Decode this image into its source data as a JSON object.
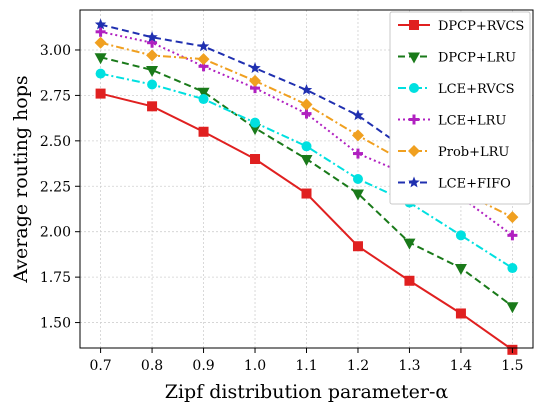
{
  "chart_data": {
    "type": "line",
    "title": "",
    "xlabel": "Zipf distribution parameter-α",
    "ylabel": "Average routing hops",
    "x": [
      0.7,
      0.8,
      0.9,
      1.0,
      1.1,
      1.2,
      1.3,
      1.4,
      1.5
    ],
    "x_tick_labels": [
      "0.7",
      "0.8",
      "0.9",
      "1.0",
      "1.1",
      "1.2",
      "1.3",
      "1.4",
      "1.5"
    ],
    "xlim": [
      0.66,
      1.54
    ],
    "ylim": [
      1.36,
      3.22
    ],
    "y_ticks": [
      1.5,
      1.75,
      2.0,
      2.25,
      2.5,
      2.75,
      3.0
    ],
    "y_tick_labels": [
      "1.50",
      "1.75",
      "2.00",
      "2.25",
      "2.50",
      "2.75",
      "3.00"
    ],
    "grid": true,
    "legend_position": "top-right",
    "series": [
      {
        "name": "DPCP+RVCS",
        "color": "#e02020",
        "marker": "square",
        "dash": "solid",
        "values": [
          2.76,
          2.69,
          2.55,
          2.4,
          2.21,
          1.92,
          1.73,
          1.55,
          1.35
        ]
      },
      {
        "name": "DPCP+LRU",
        "color": "#1a7a1a",
        "marker": "triangle-down",
        "dash": "dashed",
        "values": [
          2.96,
          2.89,
          2.77,
          2.57,
          2.4,
          2.21,
          1.94,
          1.8,
          1.59
        ]
      },
      {
        "name": "LCE+RVCS",
        "color": "#00e0e0",
        "marker": "circle",
        "dash": "dashdot",
        "values": [
          2.87,
          2.81,
          2.73,
          2.6,
          2.47,
          2.29,
          2.16,
          1.98,
          1.8
        ]
      },
      {
        "name": "LCE+LRU",
        "color": "#b020c0",
        "marker": "plus",
        "dash": "dotted",
        "values": [
          3.1,
          3.04,
          2.91,
          2.79,
          2.65,
          2.43,
          2.31,
          2.19,
          1.98
        ]
      },
      {
        "name": "Prob+LRU",
        "color": "#f0a020",
        "marker": "diamond",
        "dash": "dashdot",
        "values": [
          3.04,
          2.97,
          2.95,
          2.83,
          2.7,
          2.53,
          2.37,
          2.22,
          2.08
        ]
      },
      {
        "name": "LCE+FIFO",
        "color": "#2030b0",
        "marker": "star",
        "dash": "dashed",
        "values": [
          3.14,
          3.07,
          3.02,
          2.9,
          2.78,
          2.64,
          2.44,
          2.35,
          2.19
        ]
      }
    ]
  }
}
